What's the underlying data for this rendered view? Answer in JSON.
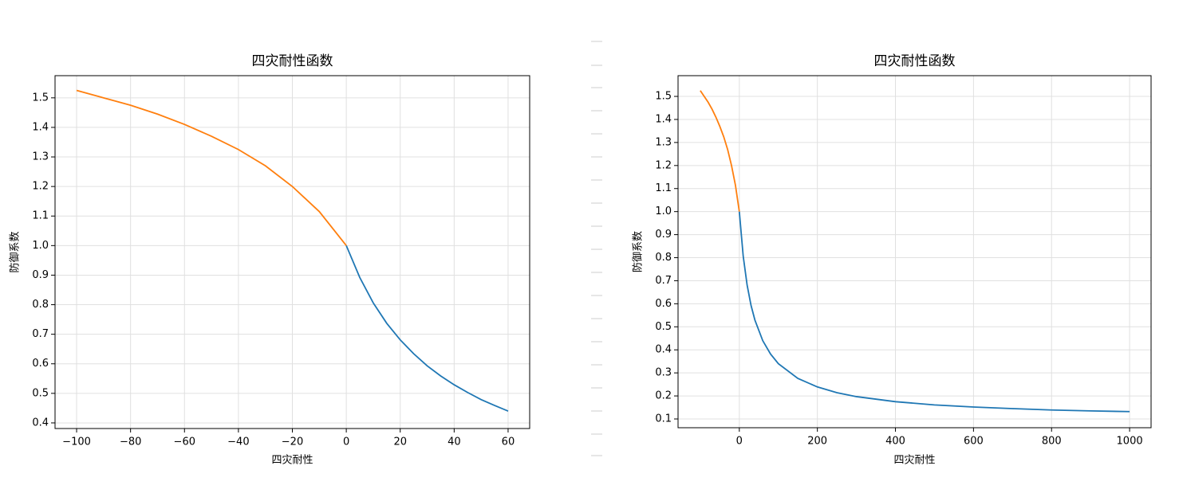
{
  "chart_data": [
    {
      "type": "line",
      "title": "四灾耐性函数",
      "x_label": "四灾耐性",
      "y_label": "防御系数",
      "grid": true,
      "xlim": [
        -108,
        68
      ],
      "ylim": [
        0.381,
        1.575
      ],
      "xticks": [
        {
          "value": -100,
          "label": "−100"
        },
        {
          "value": -80,
          "label": "−80"
        },
        {
          "value": -60,
          "label": "−60"
        },
        {
          "value": -40,
          "label": "−40"
        },
        {
          "value": -20,
          "label": "−20"
        },
        0,
        20,
        40,
        60
      ],
      "yticks": [
        0.4,
        0.5,
        0.6,
        0.7,
        0.8,
        0.9,
        {
          "value": 1,
          "label": "1.0"
        },
        1.1,
        1.2,
        1.3,
        1.4,
        1.5
      ],
      "series": [
        {
          "color": "#1f77b4",
          "x": [
            0,
            5,
            10,
            15,
            20,
            25,
            30,
            35,
            40,
            45,
            50,
            55,
            60
          ],
          "values": [
            1.0,
            0.892,
            0.806,
            0.737,
            0.681,
            0.634,
            0.593,
            0.559,
            0.529,
            0.503,
            0.479,
            0.459,
            0.44
          ]
        },
        {
          "color": "#ff7f0e",
          "x": [
            -100,
            -90,
            -80,
            -70,
            -60,
            -50,
            -40,
            -30,
            -20,
            -10,
            0
          ],
          "values": [
            1.525,
            1.5,
            1.475,
            1.445,
            1.41,
            1.37,
            1.325,
            1.27,
            1.2,
            1.115,
            1.0
          ]
        }
      ]
    },
    {
      "type": "line",
      "title": "四灾耐性函数",
      "x_label": "四灾耐性",
      "y_label": "防御系数",
      "grid": true,
      "xlim": [
        -157,
        1055
      ],
      "ylim": [
        0.062,
        1.59
      ],
      "xticks": [
        0,
        200,
        400,
        600,
        800,
        1000
      ],
      "yticks": [
        0.1,
        0.2,
        0.3,
        0.4,
        0.5,
        0.6,
        0.7,
        0.8,
        0.9,
        {
          "value": 1,
          "label": "1.0"
        },
        1.1,
        1.2,
        1.3,
        1.4,
        1.5
      ],
      "series": [
        {
          "color": "#1f77b4",
          "x": [
            0,
            10,
            20,
            30,
            40,
            60,
            80,
            100,
            150,
            200,
            250,
            300,
            400,
            500,
            600,
            700,
            800,
            900,
            1000
          ],
          "values": [
            1.0,
            0.806,
            0.681,
            0.593,
            0.529,
            0.44,
            0.382,
            0.34,
            0.276,
            0.239,
            0.214,
            0.197,
            0.175,
            0.161,
            0.152,
            0.145,
            0.139,
            0.135,
            0.132
          ]
        },
        {
          "color": "#ff7f0e",
          "x": [
            -100,
            -90,
            -80,
            -70,
            -60,
            -50,
            -40,
            -30,
            -20,
            -10,
            0
          ],
          "values": [
            1.525,
            1.5,
            1.475,
            1.445,
            1.41,
            1.37,
            1.325,
            1.27,
            1.2,
            1.115,
            1.0
          ]
        }
      ]
    }
  ]
}
